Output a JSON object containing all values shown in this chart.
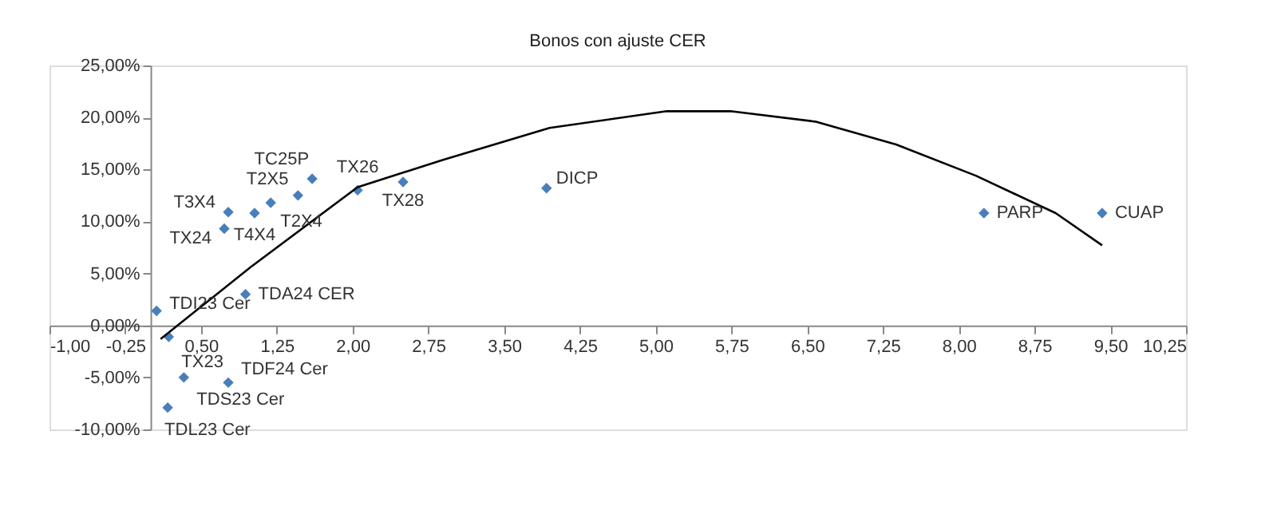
{
  "chart_data": {
    "type": "scatter",
    "title": "Bonos con ajuste CER",
    "series": [
      {
        "type": "scatter",
        "color": "#4a7ebb",
        "marker": "diamond",
        "x": [
          0.06,
          0.18,
          0.33,
          0.17,
          0.77,
          0.94,
          0.73,
          0.77,
          1.03,
          1.19,
          1.46,
          1.6,
          2.05,
          2.5,
          3.92,
          8.25,
          9.42
        ],
        "values": [
          1.4,
          -1.1,
          -5.0,
          -7.9,
          -5.5,
          3.0,
          9.3,
          10.9,
          10.8,
          11.8,
          12.5,
          14.1,
          13.0,
          13.8,
          13.2,
          10.8,
          10.8
        ]
      },
      {
        "type": "line",
        "color": "#000000",
        "marker": "none",
        "x": [
          0.1,
          0.99,
          2.05,
          2.89,
          3.95,
          5.11,
          5.74,
          6.58,
          7.38,
          8.17,
          8.96,
          9.42
        ],
        "values": [
          -1.3,
          5.6,
          13.3,
          15.9,
          19.0,
          20.6,
          20.6,
          19.6,
          17.4,
          14.4,
          10.8,
          7.7
        ]
      }
    ],
    "annotations": [
      {
        "text": "TDI23 Cer",
        "x": 0.06,
        "y": 1.4
      },
      {
        "text": "TX23",
        "x": 0.18,
        "y": -1.1
      },
      {
        "text": "TDS23 Cer",
        "x": 0.33,
        "y": -5.0
      },
      {
        "text": "TDL23 Cer",
        "x": 0.17,
        "y": -7.9
      },
      {
        "text": "TDF24 Cer",
        "x": 0.77,
        "y": -5.5
      },
      {
        "text": "TDA24 CER",
        "x": 0.94,
        "y": 3.0
      },
      {
        "text": "TX24",
        "x": 0.73,
        "y": 9.3
      },
      {
        "text": "T3X4",
        "x": 0.77,
        "y": 10.9
      },
      {
        "text": "T4X4",
        "x": 1.03,
        "y": 10.8
      },
      {
        "text": "T2X4",
        "x": 1.19,
        "y": 11.8
      },
      {
        "text": "T2X5",
        "x": 1.46,
        "y": 12.5
      },
      {
        "text": "TC25P",
        "x": 1.6,
        "y": 14.1
      },
      {
        "text": "TX26",
        "x": 2.05,
        "y": 13.0
      },
      {
        "text": "TX28",
        "x": 2.5,
        "y": 13.8
      },
      {
        "text": "DICP",
        "x": 3.92,
        "y": 13.2
      },
      {
        "text": "PARP",
        "x": 8.25,
        "y": 10.8
      },
      {
        "text": "CUAP",
        "x": 9.42,
        "y": 10.8
      }
    ],
    "xlim": [
      -1,
      10.25
    ],
    "xticks": [
      {
        "value": -1,
        "label": "-1,00"
      },
      {
        "value": -0.25,
        "label": "-0,25"
      },
      {
        "value": 0.5,
        "label": "0,50"
      },
      {
        "value": 1.25,
        "label": "1,25"
      },
      {
        "value": 2,
        "label": "2,00"
      },
      {
        "value": 2.75,
        "label": "2,75"
      },
      {
        "value": 3.5,
        "label": "3,50"
      },
      {
        "value": 4.25,
        "label": "4,25"
      },
      {
        "value": 5,
        "label": "5,00"
      },
      {
        "value": 5.75,
        "label": "5,75"
      },
      {
        "value": 6.5,
        "label": "6,50"
      },
      {
        "value": 7.25,
        "label": "7,25"
      },
      {
        "value": 8,
        "label": "8,00"
      },
      {
        "value": 8.75,
        "label": "8,75"
      },
      {
        "value": 9.5,
        "label": "9,50"
      },
      {
        "value": 10.25,
        "label": "10,25"
      }
    ],
    "ylim": [
      -10,
      25
    ],
    "yticks": [
      {
        "value": -10,
        "label": "-10,00%"
      },
      {
        "value": -5,
        "label": "-5,00%"
      },
      {
        "value": 0,
        "label": "0,00%"
      },
      {
        "value": 5,
        "label": "5,00%"
      },
      {
        "value": 10,
        "label": "10,00%"
      },
      {
        "value": 15,
        "label": "15,00%"
      },
      {
        "value": 20,
        "label": "20,00%"
      },
      {
        "value": 25,
        "label": "25,00%"
      }
    ],
    "grid": false
  }
}
